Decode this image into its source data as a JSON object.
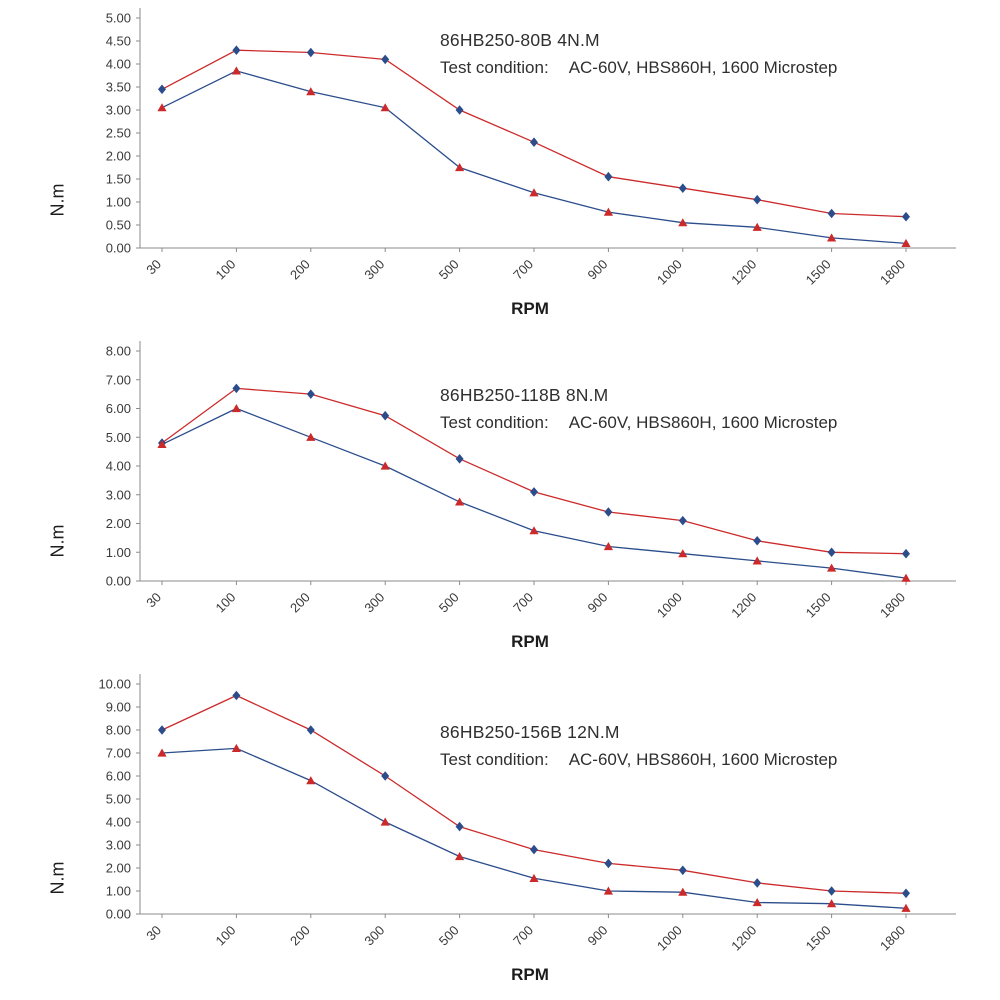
{
  "chart_data": [
    {
      "type": "line",
      "title": "86HB250-80B 4N.M",
      "subtitle_label": "Test condition:",
      "subtitle_value": "AC-60V, HBS860H, 1600 Microstep",
      "xlabel": "RPM",
      "ylabel": "N.m",
      "categories": [
        30,
        100,
        200,
        300,
        500,
        700,
        900,
        1000,
        1200,
        1500,
        1800
      ],
      "ylim": [
        0,
        5
      ],
      "ytick_step": 0.5,
      "grid": false,
      "legend": "none",
      "series": [
        {
          "name": "blue-diamond-series",
          "marker": "diamond",
          "marker_color": "#2b4d8c",
          "line_color": "#cc2a2a",
          "values": [
            3.45,
            4.3,
            4.25,
            4.1,
            3.0,
            2.3,
            1.55,
            1.3,
            1.05,
            0.75,
            0.68
          ]
        },
        {
          "name": "red-triangle-series",
          "marker": "triangle",
          "marker_color": "#cc2a2a",
          "line_color": "#2b4d8c",
          "values": [
            3.05,
            3.85,
            3.4,
            3.05,
            1.75,
            1.2,
            0.78,
            0.55,
            0.45,
            0.22,
            0.1
          ]
        }
      ]
    },
    {
      "type": "line",
      "title": "86HB250-118B 8N.M",
      "subtitle_label": "Test condition:",
      "subtitle_value": "AC-60V, HBS860H, 1600 Microstep",
      "xlabel": "RPM",
      "ylabel": "N.m",
      "categories": [
        30,
        100,
        200,
        300,
        500,
        700,
        900,
        1000,
        1200,
        1500,
        1800
      ],
      "ylim": [
        0,
        8
      ],
      "ytick_step": 1,
      "grid": false,
      "legend": "none",
      "series": [
        {
          "name": "blue-diamond-series",
          "marker": "diamond",
          "marker_color": "#2b4d8c",
          "line_color": "#cc2a2a",
          "values": [
            4.8,
            6.7,
            6.5,
            5.75,
            4.25,
            3.1,
            2.4,
            2.1,
            1.4,
            1.0,
            0.95
          ]
        },
        {
          "name": "red-triangle-series",
          "marker": "triangle",
          "marker_color": "#cc2a2a",
          "line_color": "#2b4d8c",
          "values": [
            4.75,
            6.0,
            5.0,
            4.0,
            2.75,
            1.75,
            1.2,
            0.95,
            0.7,
            0.45,
            0.1
          ]
        }
      ]
    },
    {
      "type": "line",
      "title": "86HB250-156B 12N.M",
      "subtitle_label": "Test condition:",
      "subtitle_value": "AC-60V, HBS860H, 1600 Microstep",
      "xlabel": "RPM",
      "ylabel": "N.m",
      "categories": [
        30,
        100,
        200,
        300,
        500,
        700,
        900,
        1000,
        1200,
        1500,
        1800
      ],
      "ylim": [
        0,
        10
      ],
      "ytick_step": 1,
      "grid": false,
      "legend": "none",
      "series": [
        {
          "name": "blue-diamond-series",
          "marker": "diamond",
          "marker_color": "#2b4d8c",
          "line_color": "#cc2a2a",
          "values": [
            8.0,
            9.5,
            8.0,
            6.0,
            3.8,
            2.8,
            2.2,
            1.9,
            1.35,
            1.0,
            0.9
          ]
        },
        {
          "name": "red-triangle-series",
          "marker": "triangle",
          "marker_color": "#cc2a2a",
          "line_color": "#2b4d8c",
          "values": [
            7.0,
            7.2,
            5.8,
            4.0,
            2.5,
            1.55,
            1.0,
            0.95,
            0.5,
            0.45,
            0.25
          ]
        }
      ]
    }
  ]
}
